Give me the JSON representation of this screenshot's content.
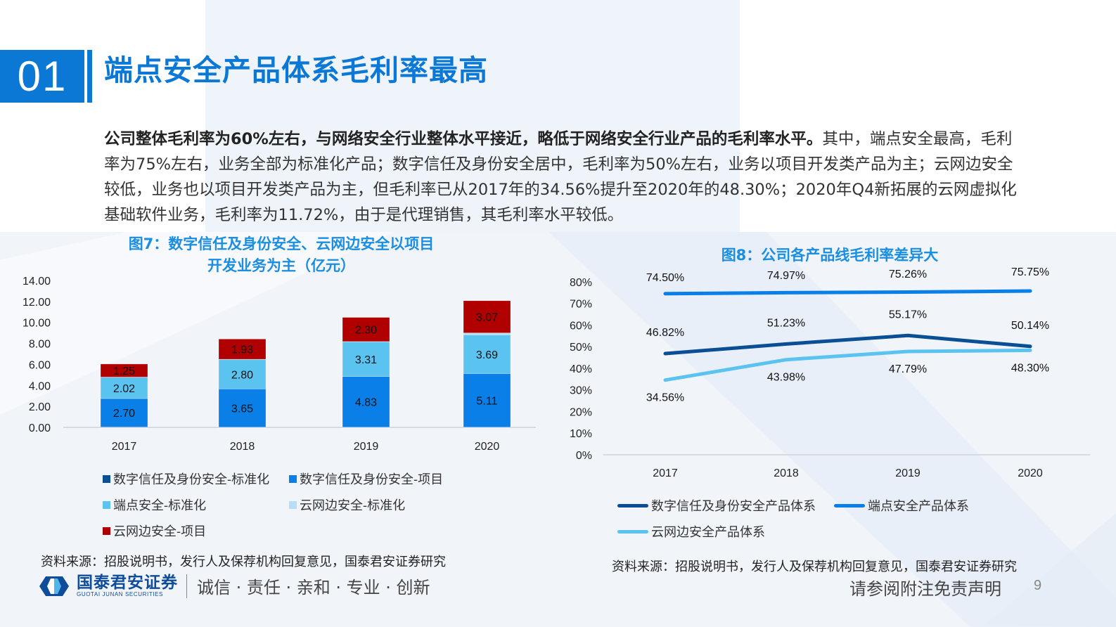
{
  "header": {
    "section_number": "01",
    "title": "端点安全产品体系毛利率最高"
  },
  "body": {
    "bold_text": "公司整体毛利率为60%左右，与网络安全行业整体水平接近，略低于网络安全行业产品的毛利率水平。",
    "normal_text": "其中，端点安全最高，毛利率为75%左右，业务全部为标准化产品；数字信任及身份安全居中，毛利率为50%左右，业务以项目开发类产品为主；云网边安全较低，业务也以项目开发类产品为主，但毛利率已从2017年的34.56%提升至2020年的48.30%；2020年Q4新拓展的云网虚拟化基础软件业务，毛利率为11.72%，由于是代理销售，其毛利率水平较低。"
  },
  "figure7": {
    "title_line1": "图7：数字信任及身份安全、云网边安全以项目",
    "title_line2": "开发业务为主（亿元）",
    "source": "资料来源：招股说明书，发行人及保荐机构回复意见，国泰君安证券研究"
  },
  "figure8": {
    "title": "图8：公司各产品线毛利率差异大",
    "source": "资料来源：招股说明书，发行人及保荐机构回复意见，国泰君安证券研究"
  },
  "footer": {
    "logo_cn": "国泰君安证券",
    "logo_en": "GUOTAI JUNAN SECURITIES",
    "slogan": "诚信 · 责任 · 亲和 · 专业 · 创新",
    "disclaimer": "请参阅附注免责声明",
    "page_number": "9"
  },
  "colors": {
    "brand_blue": "#0b78d6",
    "title_blue": "#1a8ee0",
    "dark_navy": "#0a4f94",
    "bright_blue": "#0a7fe8",
    "sky_blue": "#5bc3f0",
    "pale_blue": "#b5defa",
    "dark_red": "#b00000"
  },
  "chart_data": [
    {
      "type": "bar",
      "stacked": true,
      "title": "图7：数字信任及身份安全、云网边安全以项目开发业务为主（亿元）",
      "xlabel": "",
      "ylabel": "亿元",
      "ylim": [
        0,
        14
      ],
      "yticks": [
        "0.00",
        "2.00",
        "4.00",
        "6.00",
        "8.00",
        "10.00",
        "12.00",
        "14.00"
      ],
      "categories": [
        "2017",
        "2018",
        "2019",
        "2020"
      ],
      "series": [
        {
          "name": "数字信任及身份安全-标准化",
          "color": "#0a4f94",
          "values": [
            0.05,
            0.02,
            0.02,
            0.02
          ]
        },
        {
          "name": "数字信任及身份安全-项目",
          "color": "#0a7fe8",
          "values": [
            2.7,
            3.65,
            4.83,
            5.11
          ]
        },
        {
          "name": "端点安全-标准化",
          "color": "#5bc3f0",
          "values": [
            2.02,
            2.8,
            3.31,
            3.69
          ]
        },
        {
          "name": "云网边安全-标准化",
          "color": "#b5defa",
          "values": [
            0.02,
            0.02,
            0.02,
            0.18
          ]
        },
        {
          "name": "云网边安全-项目",
          "color": "#b00000",
          "values": [
            1.25,
            1.93,
            2.3,
            3.07
          ]
        }
      ],
      "data_labels": {
        "数字信任及身份安全-项目": [
          "2.70",
          "3.65",
          "4.83",
          "5.11"
        ],
        "端点安全-标准化": [
          "2.02",
          "2.80",
          "3.31",
          "3.69"
        ],
        "云网边安全-项目": [
          "1.25",
          "1.93",
          "2.30",
          "3.07"
        ]
      },
      "grid": false,
      "legend_position": "bottom"
    },
    {
      "type": "line",
      "title": "图8：公司各产品线毛利率差异大",
      "xlabel": "",
      "ylabel": "",
      "ylim": [
        0,
        80
      ],
      "yticks": [
        "0%",
        "10%",
        "20%",
        "30%",
        "40%",
        "50%",
        "60%",
        "70%",
        "80%"
      ],
      "categories": [
        "2017",
        "2018",
        "2019",
        "2020"
      ],
      "series": [
        {
          "name": "数字信任及身份安全产品体系",
          "color": "#0a4f94",
          "values": [
            46.82,
            51.23,
            55.17,
            50.14
          ],
          "labels": [
            "46.82%",
            "51.23%",
            "55.17%",
            "50.14%"
          ]
        },
        {
          "name": "端点安全产品体系",
          "color": "#0a7fe8",
          "values": [
            74.5,
            74.97,
            75.26,
            75.75
          ],
          "labels": [
            "74.50%",
            "74.97%",
            "75.26%",
            "75.75%"
          ]
        },
        {
          "name": "云网边安全产品体系",
          "color": "#5bc3f0",
          "values": [
            34.56,
            43.98,
            47.79,
            48.3
          ],
          "labels": [
            "34.56%",
            "43.98%",
            "47.79%",
            "48.30%"
          ]
        }
      ],
      "grid": false,
      "legend_position": "bottom"
    }
  ]
}
